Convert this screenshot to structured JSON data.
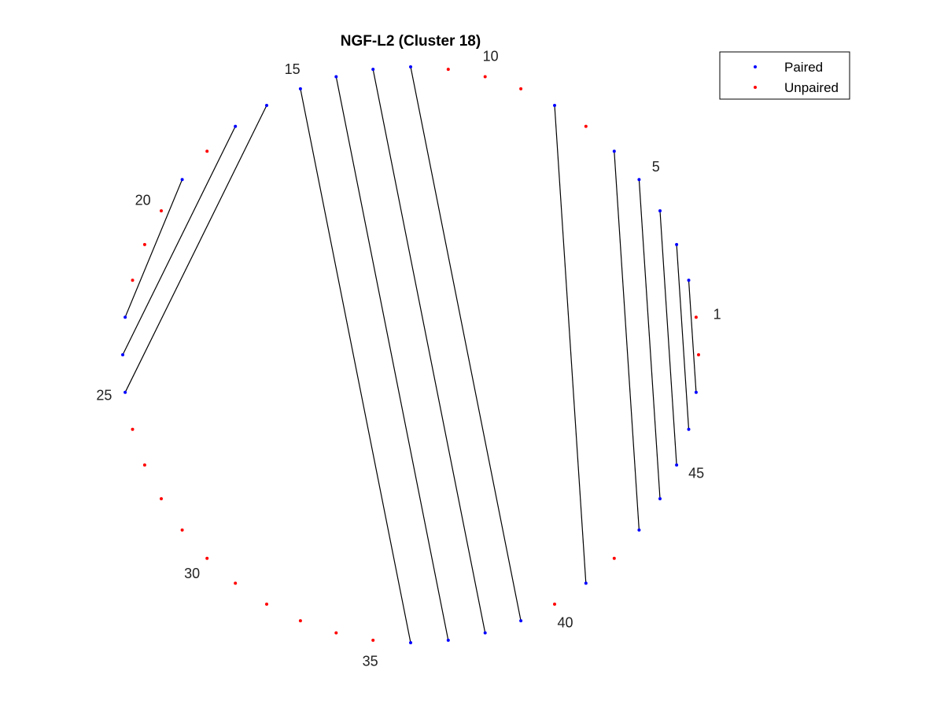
{
  "chart_data": {
    "type": "arc-diagram",
    "title": "NGF-L2 (Cluster 18)",
    "n_positions": 48,
    "pairs": [
      [
        2,
        47
      ],
      [
        3,
        46
      ],
      [
        4,
        45
      ],
      [
        5,
        44
      ],
      [
        6,
        43
      ],
      [
        8,
        41
      ],
      [
        12,
        39
      ],
      [
        13,
        38
      ],
      [
        14,
        37
      ],
      [
        15,
        36
      ],
      [
        16,
        25
      ],
      [
        17,
        24
      ],
      [
        19,
        23
      ]
    ],
    "index_labels": [
      "1",
      "5",
      "10",
      "15",
      "20",
      "25",
      "30",
      "35",
      "40",
      "45"
    ],
    "legend": {
      "position": "top-right",
      "entries": [
        {
          "name": "Paired",
          "color": "#0000ff"
        },
        {
          "name": "Unpaired",
          "color": "#ff0000"
        }
      ]
    }
  }
}
